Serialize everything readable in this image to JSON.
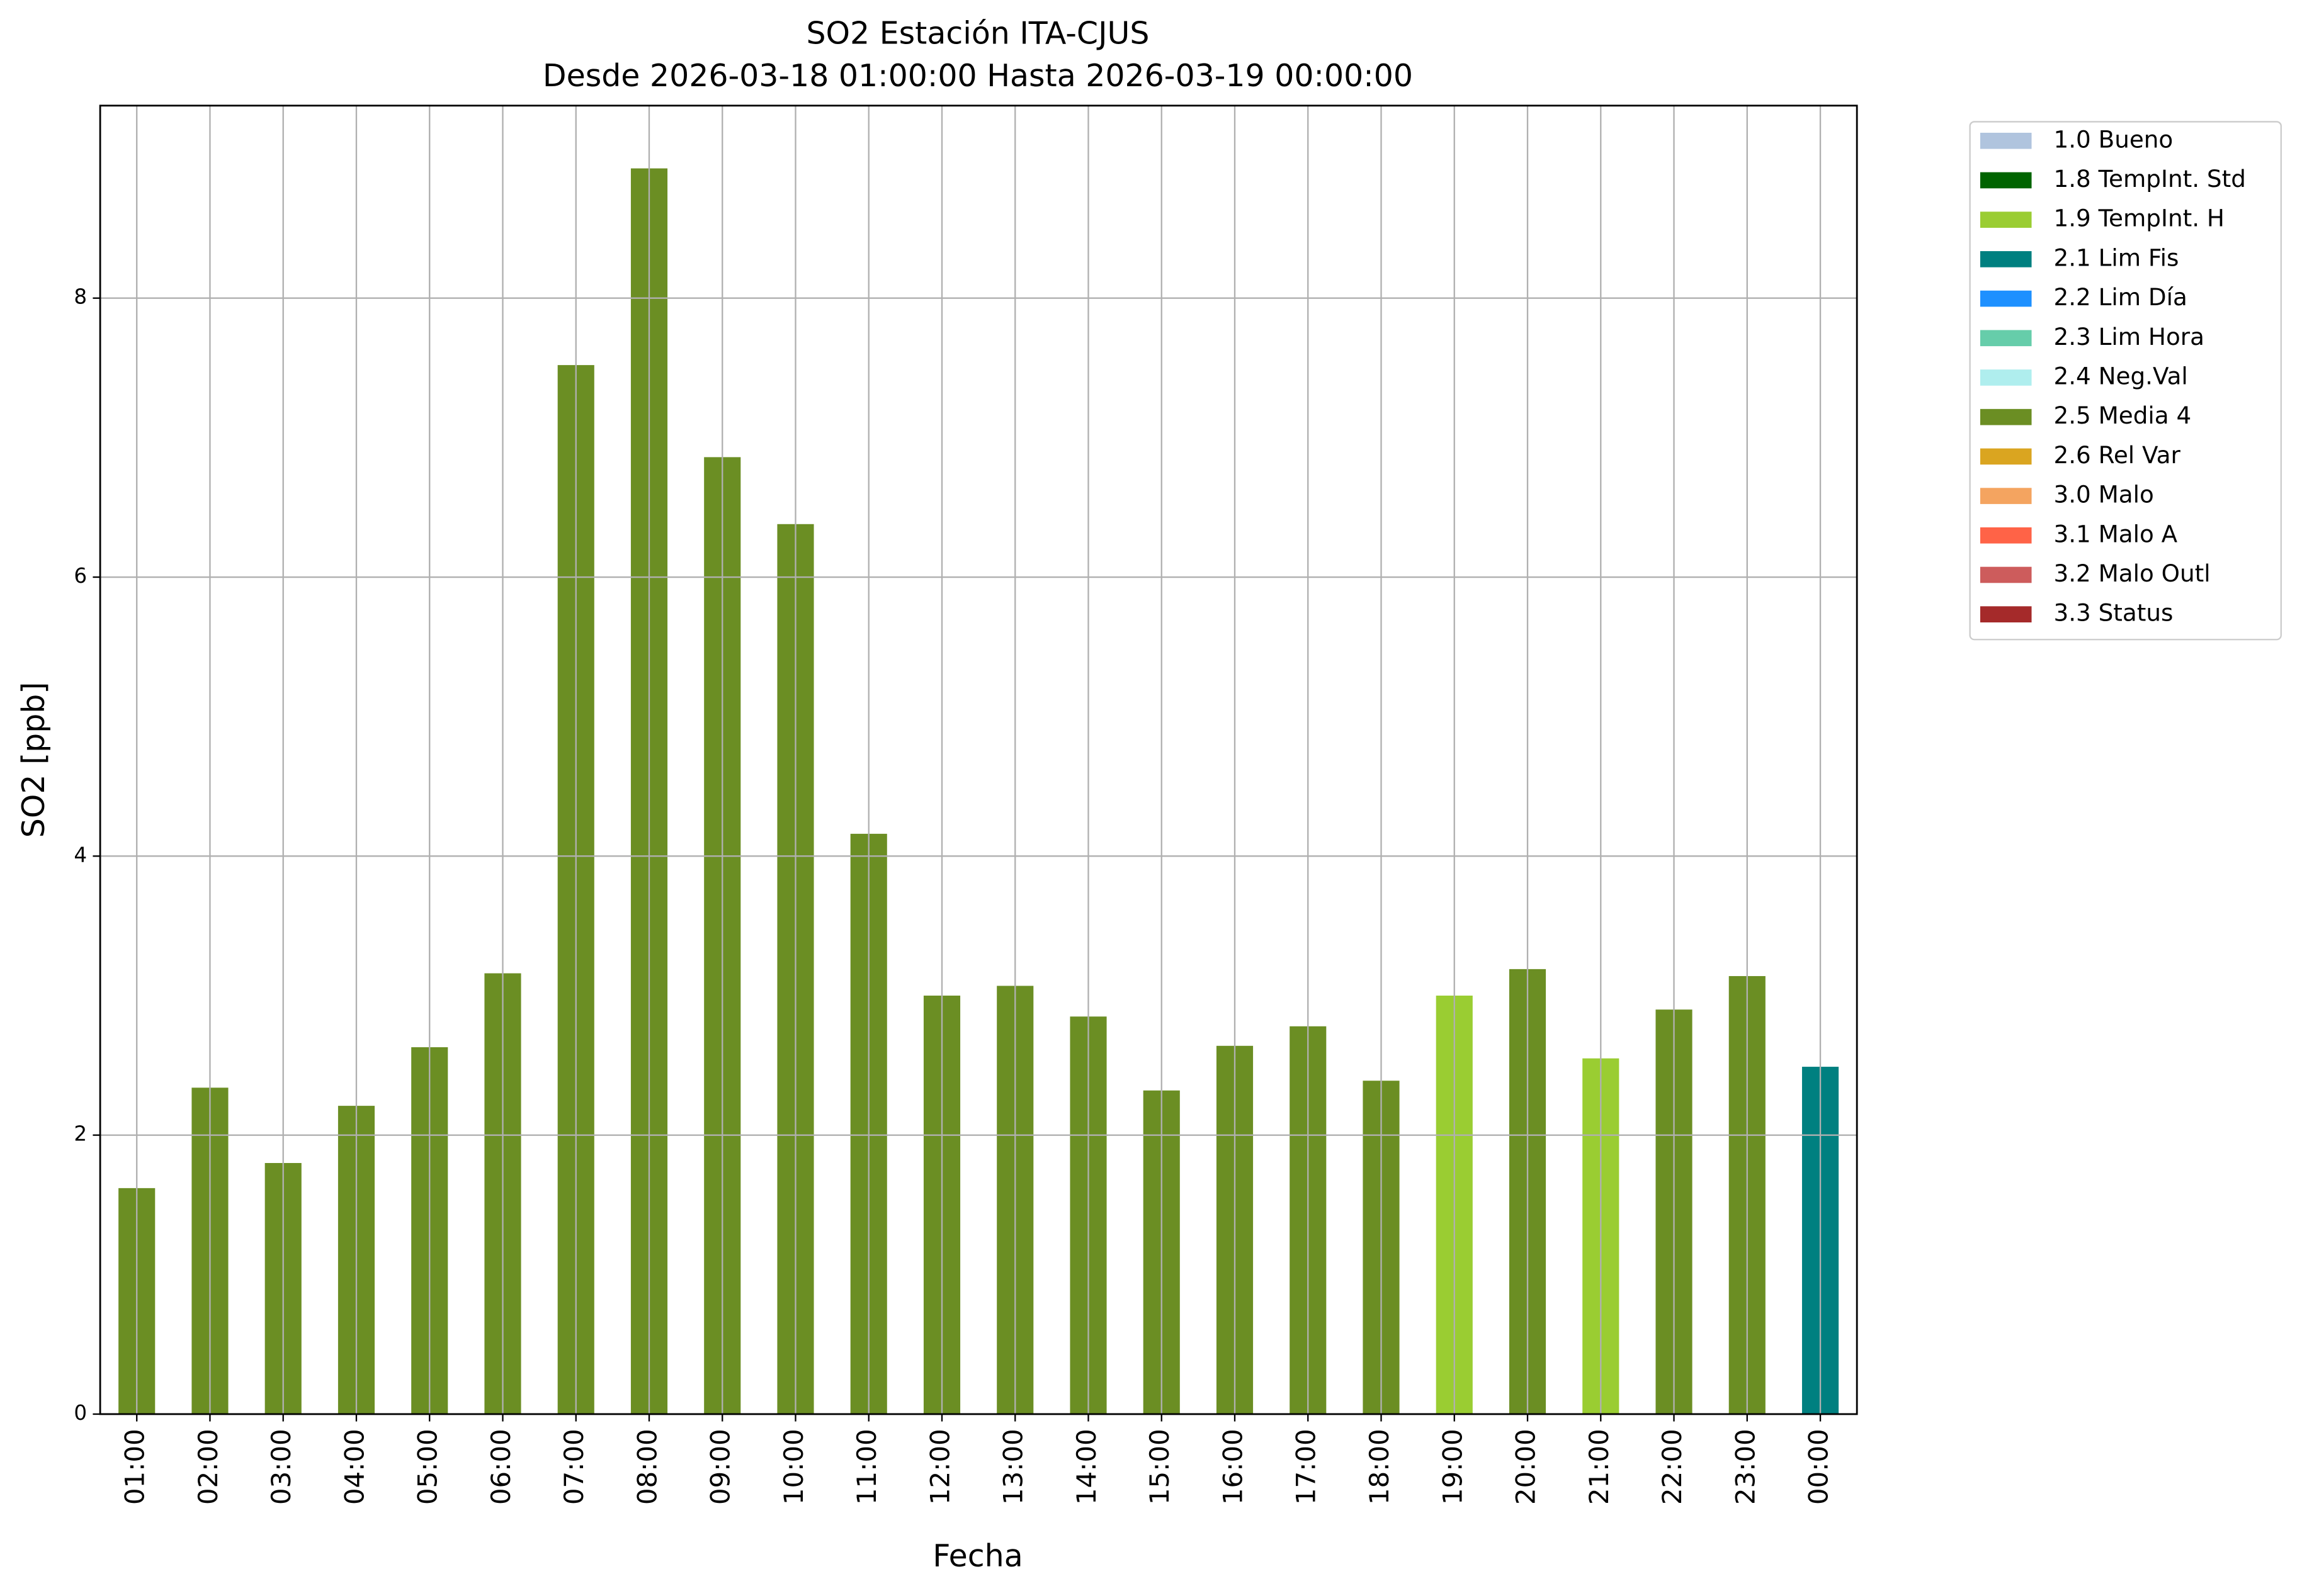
{
  "chart_data": {
    "type": "bar",
    "title": "SO2 Estación ITA-CJUS",
    "subtitle": "Desde 2026-03-18 01:00:00 Hasta 2026-03-19 00:00:00",
    "x_label": "Fecha",
    "y_label": "SO2 [ppb]",
    "categories": [
      "01:00",
      "02:00",
      "03:00",
      "04:00",
      "05:00",
      "06:00",
      "07:00",
      "08:00",
      "09:00",
      "10:00",
      "11:00",
      "12:00",
      "13:00",
      "14:00",
      "15:00",
      "16:00",
      "17:00",
      "18:00",
      "19:00",
      "20:00",
      "21:00",
      "22:00",
      "23:00",
      "00:00"
    ],
    "values": [
      1.62,
      2.34,
      1.8,
      2.21,
      2.63,
      3.16,
      7.52,
      8.93,
      6.86,
      6.38,
      4.16,
      3.0,
      3.07,
      2.85,
      2.32,
      2.64,
      2.78,
      2.39,
      3.0,
      3.19,
      2.55,
      2.9,
      3.14,
      2.49
    ],
    "colors": [
      "#6b8e23",
      "#6b8e23",
      "#6b8e23",
      "#6b8e23",
      "#6b8e23",
      "#6b8e23",
      "#6b8e23",
      "#6b8e23",
      "#6b8e23",
      "#6b8e23",
      "#6b8e23",
      "#6b8e23",
      "#6b8e23",
      "#6b8e23",
      "#6b8e23",
      "#6b8e23",
      "#6b8e23",
      "#6b8e23",
      "#9acd32",
      "#6b8e23",
      "#9acd32",
      "#6b8e23",
      "#6b8e23",
      "#008080"
    ],
    "legend": [
      {
        "name": "1.0 Bueno",
        "color": "#b0c4de"
      },
      {
        "name": "1.8 TempInt. Std",
        "color": "#006400"
      },
      {
        "name": "1.9 TempInt. H",
        "color": "#9acd32"
      },
      {
        "name": "2.1 Lim Fis",
        "color": "#008080"
      },
      {
        "name": "2.2 Lim Día",
        "color": "#1e90ff"
      },
      {
        "name": "2.3 Lim Hora",
        "color": "#66cdaa"
      },
      {
        "name": "2.4 Neg.Val",
        "color": "#afeeee"
      },
      {
        "name": "2.5 Media 4",
        "color": "#6b8e23"
      },
      {
        "name": "2.6 Rel Var",
        "color": "#daa520"
      },
      {
        "name": "3.0 Malo",
        "color": "#f4a460"
      },
      {
        "name": "3.1 Malo A",
        "color": "#ff6347"
      },
      {
        "name": "3.2 Malo Outl",
        "color": "#cd5c5c"
      },
      {
        "name": "3.3 Status",
        "color": "#a52a2a"
      }
    ],
    "legend_position": "outside-upper-right",
    "ylim": [
      0,
      9.38
    ],
    "yticks": [
      0,
      2,
      4,
      6,
      8
    ],
    "grid": true
  }
}
